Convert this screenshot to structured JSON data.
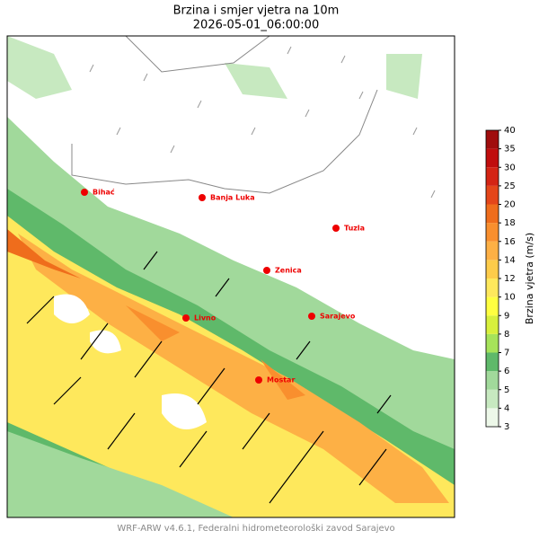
{
  "title": "Brzina i smjer vjetra na 10m",
  "subtitle": "2026-05-01_06:00:00",
  "cities": [
    {
      "name": "Bihać"
    },
    {
      "name": "Banja Luka"
    },
    {
      "name": "Tuzla"
    },
    {
      "name": "Zenica"
    },
    {
      "name": "Sarajevo"
    },
    {
      "name": "Livno"
    },
    {
      "name": "Mostar"
    }
  ],
  "colorbar": {
    "label": "Brzina vjetra (m/s)",
    "ticks": [
      3,
      4,
      5,
      6,
      7,
      8,
      9,
      10,
      12,
      14,
      16,
      18,
      20,
      25,
      30,
      35,
      40
    ],
    "colors": [
      "#edf8e9",
      "#c7e9c0",
      "#a1d99b",
      "#5fb96a",
      "#a6e35a",
      "#d8f03c",
      "#ffff40",
      "#fee85c",
      "#fdcc4a",
      "#fdb045",
      "#f98f2e",
      "#ef6d1c",
      "#e4461a",
      "#d42414",
      "#c00d0d",
      "#a00d0d"
    ]
  },
  "footer": "WRF-ARW v4.6.1, Federalni hidrometeorološki zavod Sarajevo"
}
